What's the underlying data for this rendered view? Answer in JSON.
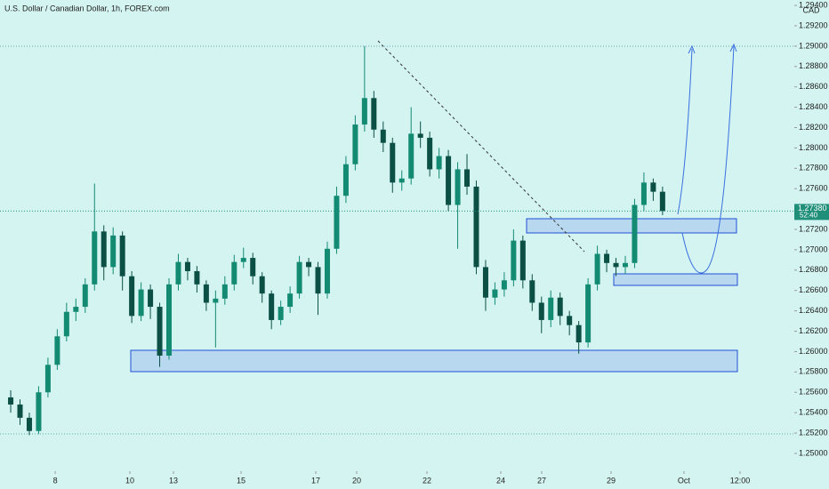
{
  "chart_data": {
    "type": "candlestick",
    "title": "U.S. Dollar / Canadian Dollar, 1h, FOREX.com",
    "currency": "CAD",
    "up_color": "#138a72",
    "down_color": "#0c4f45",
    "x": [
      0,
      1,
      2,
      3,
      4,
      5,
      6,
      7,
      8,
      9,
      10,
      11,
      12,
      13,
      14,
      15,
      16,
      17,
      18,
      19,
      20,
      21,
      22,
      23,
      24,
      25,
      26,
      27,
      28,
      29,
      30,
      31,
      32,
      33,
      34,
      35,
      36,
      37,
      38,
      39,
      40,
      41,
      42,
      43,
      44,
      45,
      46,
      47,
      48,
      49,
      50,
      51,
      52,
      53,
      54,
      55,
      56,
      57,
      58,
      59,
      60,
      61,
      62,
      63,
      64,
      65,
      66,
      67,
      68,
      69,
      70
    ],
    "open": [
      1.2555,
      1.2548,
      1.2535,
      1.2522,
      1.256,
      1.2587,
      1.2615,
      1.2639,
      1.2644,
      1.2666,
      1.2718,
      1.2683,
      1.2714,
      1.2674,
      1.2635,
      1.2661,
      1.2644,
      1.2596,
      1.2666,
      1.2688,
      1.2679,
      1.2666,
      1.2648,
      1.2652,
      1.2666,
      1.2688,
      1.2692,
      1.2674,
      1.2657,
      1.2631,
      1.2644,
      1.2657,
      1.2688,
      1.2683,
      1.2657,
      1.2701,
      1.2753,
      1.2784,
      1.2823,
      1.2849,
      1.2818,
      1.2805,
      1.2766,
      1.277,
      1.2814,
      1.281,
      1.2779,
      1.2792,
      1.2744,
      1.2779,
      1.2762,
      1.2683,
      1.2653,
      1.2661,
      1.267,
      1.2709,
      1.267,
      1.2648,
      1.2631,
      1.2653,
      1.2635,
      1.2626,
      1.2609,
      1.2666,
      1.2696,
      1.2687,
      1.2683,
      1.2687,
      1.2744,
      1.2766,
      1.2757
    ],
    "high": [
      1.2562,
      1.2553,
      1.254,
      1.2566,
      1.2594,
      1.2622,
      1.2648,
      1.2652,
      1.2672,
      1.2765,
      1.2724,
      1.2722,
      1.2718,
      1.2679,
      1.2668,
      1.2666,
      1.2648,
      1.2672,
      1.2696,
      1.2692,
      1.2684,
      1.267,
      1.266,
      1.2674,
      1.2695,
      1.2702,
      1.2697,
      1.2678,
      1.266,
      1.265,
      1.2664,
      1.2694,
      1.2692,
      1.2688,
      1.2708,
      1.2762,
      1.2792,
      1.2832,
      1.29,
      1.2856,
      1.2826,
      1.281,
      1.2778,
      1.284,
      1.2826,
      1.2816,
      1.28,
      1.2798,
      1.2786,
      1.2794,
      1.2768,
      1.269,
      1.2668,
      1.2678,
      1.272,
      1.2714,
      1.2676,
      1.2654,
      1.266,
      1.2658,
      1.264,
      1.263,
      1.2672,
      1.2704,
      1.27,
      1.2692,
      1.2694,
      1.275,
      1.2776,
      1.277,
      1.2762
    ],
    "low": [
      1.254,
      1.2528,
      1.2518,
      1.2519,
      1.2555,
      1.2582,
      1.261,
      1.263,
      1.2638,
      1.266,
      1.267,
      1.2676,
      1.266,
      1.2628,
      1.263,
      1.2632,
      1.2585,
      1.2592,
      1.266,
      1.267,
      1.2658,
      1.264,
      1.2604,
      1.2646,
      1.266,
      1.2682,
      1.2666,
      1.2648,
      1.2622,
      1.2626,
      1.2638,
      1.2652,
      1.2674,
      1.2636,
      1.2652,
      1.2696,
      1.2746,
      1.2778,
      1.2816,
      1.281,
      1.2796,
      1.2756,
      1.2758,
      1.2764,
      1.28,
      1.2772,
      1.277,
      1.2738,
      1.2701,
      1.2754,
      1.2676,
      1.264,
      1.2646,
      1.2654,
      1.2664,
      1.2662,
      1.264,
      1.2618,
      1.2624,
      1.2626,
      1.2616,
      1.2598,
      1.2604,
      1.266,
      1.2678,
      1.2674,
      1.2676,
      1.2682,
      1.2738,
      1.2748,
      1.2734
    ],
    "close": [
      1.2548,
      1.2535,
      1.2522,
      1.256,
      1.2587,
      1.2615,
      1.2639,
      1.2644,
      1.2666,
      1.2718,
      1.2683,
      1.2714,
      1.2674,
      1.2635,
      1.2661,
      1.2644,
      1.2596,
      1.2666,
      1.2688,
      1.2679,
      1.2666,
      1.2648,
      1.2652,
      1.2666,
      1.2688,
      1.2692,
      1.2674,
      1.2657,
      1.2631,
      1.2644,
      1.2657,
      1.2688,
      1.2683,
      1.2657,
      1.2701,
      1.2753,
      1.2784,
      1.2823,
      1.2849,
      1.2818,
      1.2805,
      1.2766,
      1.277,
      1.2814,
      1.281,
      1.2779,
      1.2792,
      1.2744,
      1.2779,
      1.2762,
      1.2683,
      1.2653,
      1.2661,
      1.267,
      1.2709,
      1.267,
      1.2648,
      1.2631,
      1.2653,
      1.2635,
      1.2626,
      1.2609,
      1.2666,
      1.2696,
      1.2687,
      1.2683,
      1.2687,
      1.2744,
      1.2766,
      1.2757,
      1.2738
    ],
    "xlim": [
      -1.15,
      84.15
    ],
    "xticks": [
      {
        "value": 4.78,
        "label": "8"
      },
      {
        "value": 12.8,
        "label": "10"
      },
      {
        "value": 17.48,
        "label": "13"
      },
      {
        "value": 24.74,
        "label": "15"
      },
      {
        "value": 32.76,
        "label": "17"
      },
      {
        "value": 37.15,
        "label": "20"
      },
      {
        "value": 44.7,
        "label": "22"
      },
      {
        "value": 52.63,
        "label": "24"
      },
      {
        "value": 57.02,
        "label": "27"
      },
      {
        "value": 64.47,
        "label": "29"
      },
      {
        "value": 72.3,
        "label": "Oct"
      },
      {
        "value": 78.32,
        "label": "12:00"
      }
    ],
    "ylim": [
      1.24825,
      1.29453
    ],
    "yticks": [
      {
        "value": 1.25,
        "label": "1.25000"
      },
      {
        "value": 1.252,
        "label": "1.25200"
      },
      {
        "value": 1.254,
        "label": "1.25400"
      },
      {
        "value": 1.256,
        "label": "1.25600"
      },
      {
        "value": 1.258,
        "label": "1.25800"
      },
      {
        "value": 1.26,
        "label": "1.26000"
      },
      {
        "value": 1.262,
        "label": "1.26200"
      },
      {
        "value": 1.264,
        "label": "1.26400"
      },
      {
        "value": 1.266,
        "label": "1.26600"
      },
      {
        "value": 1.268,
        "label": "1.26800"
      },
      {
        "value": 1.27,
        "label": "1.27000"
      },
      {
        "value": 1.272,
        "label": "1.27200"
      },
      {
        "value": 1.274,
        "label": "1.27400"
      },
      {
        "value": 1.276,
        "label": "1.27600"
      },
      {
        "value": 1.278,
        "label": "1.27800"
      },
      {
        "value": 1.28,
        "label": "1.28000"
      },
      {
        "value": 1.282,
        "label": "1.28200"
      },
      {
        "value": 1.284,
        "label": "1.28400"
      },
      {
        "value": 1.286,
        "label": "1.28600"
      },
      {
        "value": 1.288,
        "label": "1.28800"
      },
      {
        "value": 1.29,
        "label": "1.29000"
      },
      {
        "value": 1.292,
        "label": "1.29200"
      },
      {
        "value": 1.294,
        "label": "1.29400"
      }
    ],
    "last_price": {
      "value": 1.2738,
      "label": "1.27380"
    },
    "countdown": "52:40",
    "price_line_color": "#1f8f7a"
  }
}
